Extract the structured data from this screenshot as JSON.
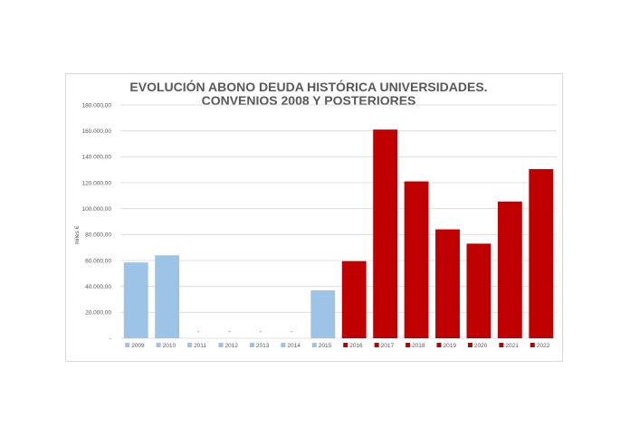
{
  "chart_data": {
    "type": "bar",
    "title_lines": [
      "EVOLUCIÓN ABONO DEUDA HISTÓRICA UNIVERSIDADES.",
      "CONVENIOS 2008 Y POSTERIORES"
    ],
    "ylabel": "miles €",
    "xlabel": "",
    "ylim": [
      0,
      180000
    ],
    "y_ticks": [
      0,
      20000,
      40000,
      60000,
      80000,
      100000,
      120000,
      140000,
      160000,
      180000
    ],
    "y_tick_labels": [
      "-",
      "20.000,00",
      "40.000,00",
      "60.000,00",
      "80.000,00",
      "100.000,00",
      "120.000,00",
      "140.000,00",
      "160.000,00",
      "180.000,00"
    ],
    "grid": true,
    "legend_position": "bottom",
    "categories": [
      "2009",
      "2010",
      "2011",
      "2012",
      "2013",
      "2014",
      "2015",
      "2016",
      "2017",
      "2018",
      "2019",
      "2020",
      "2021",
      "2022"
    ],
    "values": [
      58500,
      64000,
      0,
      0,
      0,
      0,
      37000,
      59500,
      161000,
      121000,
      84000,
      73000,
      105500,
      130500
    ],
    "zero_value_label": "-",
    "colors": {
      "light_blue": "#9dc3e6",
      "dark_red": "#c00000",
      "grid": "#d9d9d9"
    },
    "bar_colors": [
      "#9dc3e6",
      "#9dc3e6",
      "#9dc3e6",
      "#9dc3e6",
      "#9dc3e6",
      "#9dc3e6",
      "#9dc3e6",
      "#c00000",
      "#c00000",
      "#c00000",
      "#c00000",
      "#c00000",
      "#c00000",
      "#c00000"
    ]
  }
}
